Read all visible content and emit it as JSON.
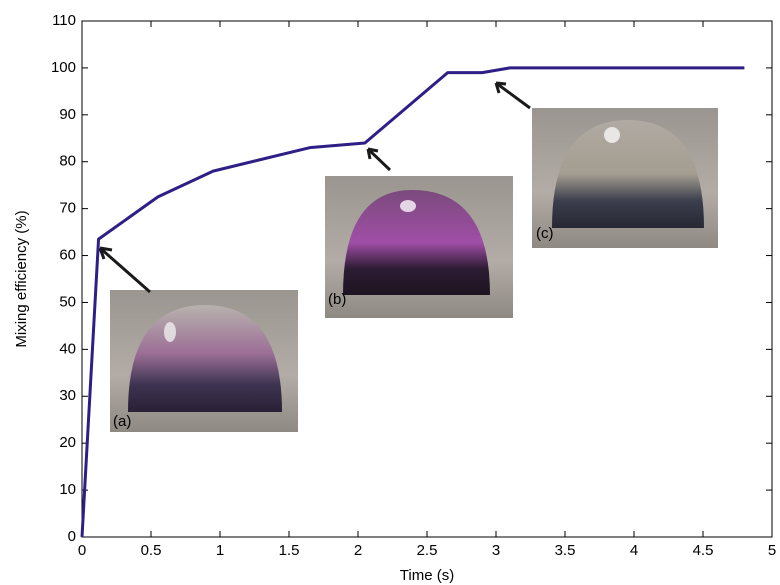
{
  "chart_data": {
    "type": "line",
    "xlabel": "Time (s)",
    "ylabel": "Mixing efficiency (%)",
    "x": [
      0,
      0.12,
      0.55,
      0.95,
      1.65,
      2.05,
      2.65,
      2.9,
      3.1,
      4.8
    ],
    "values": [
      0,
      63.5,
      72.5,
      78,
      83,
      84,
      99,
      99,
      100,
      100
    ],
    "color": "#2e1f87",
    "xlim": [
      0,
      5
    ],
    "xticks": [
      0,
      0.5,
      1,
      1.5,
      2,
      2.5,
      3,
      3.5,
      4,
      4.5,
      5
    ],
    "ylim": [
      0,
      110
    ],
    "yticks": [
      0,
      10,
      20,
      30,
      40,
      50,
      60,
      70,
      80,
      90,
      100,
      110
    ],
    "grid": false,
    "annotations": [
      "(a)",
      "(b)",
      "(c)"
    ]
  }
}
